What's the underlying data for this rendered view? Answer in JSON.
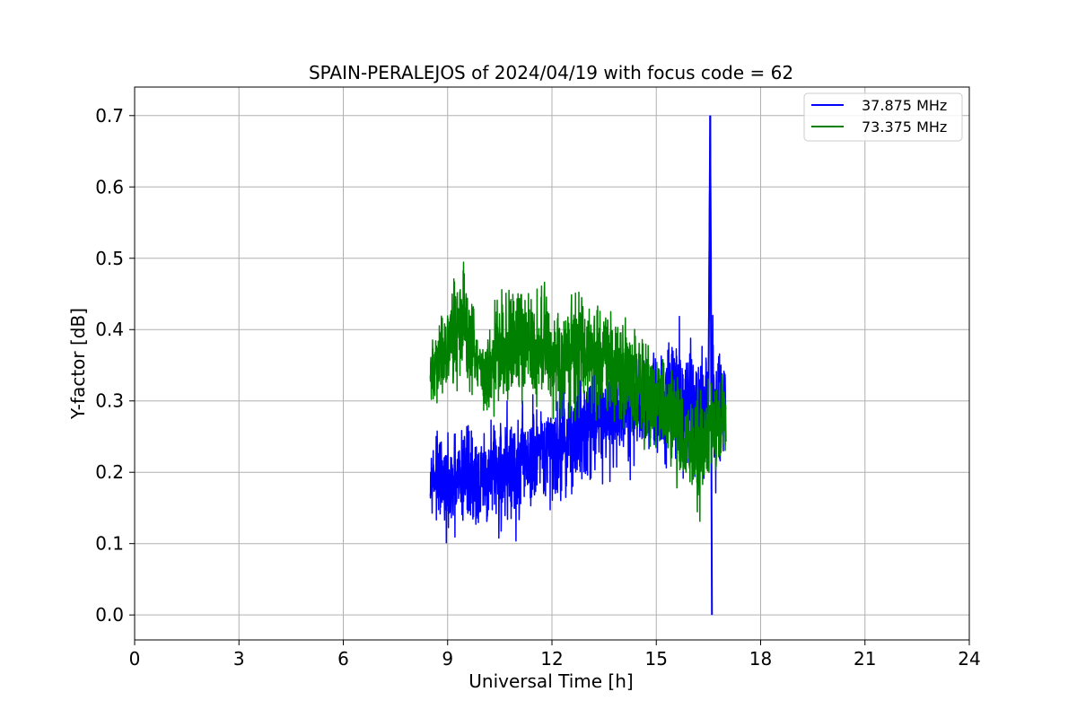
{
  "chart_data": {
    "type": "line",
    "title": "SPAIN-PERALEJOS of 2024/04/19 with focus code = 62",
    "xlabel": "Universal Time [h]",
    "ylabel": "Y-factor [dB]",
    "xlim": [
      0,
      24
    ],
    "ylim": [
      -0.035,
      0.74
    ],
    "xticks": [
      0,
      3,
      6,
      9,
      12,
      15,
      18,
      21,
      24
    ],
    "yticks": [
      0.0,
      0.1,
      0.2,
      0.3,
      0.4,
      0.5,
      0.6,
      0.7
    ],
    "xtick_labels": [
      "0",
      "3",
      "6",
      "9",
      "12",
      "15",
      "18",
      "21",
      "24"
    ],
    "ytick_labels": [
      "0.0",
      "0.1",
      "0.2",
      "0.3",
      "0.4",
      "0.5",
      "0.6",
      "0.7"
    ],
    "grid": true,
    "legend_position": "top-right",
    "series": [
      {
        "name": "37.875 MHz",
        "color": "#0000ff",
        "x": [
          8.5,
          8.75,
          9.0,
          9.25,
          9.5,
          9.75,
          10.0,
          10.25,
          10.5,
          10.75,
          11.0,
          11.25,
          11.5,
          11.75,
          12.0,
          12.25,
          12.5,
          12.75,
          13.0,
          13.25,
          13.5,
          13.75,
          14.0,
          14.25,
          14.5,
          14.75,
          15.0,
          15.25,
          15.5,
          15.75,
          16.0,
          16.25,
          16.5,
          16.55,
          16.6,
          16.75,
          17.0
        ],
        "y": [
          0.2,
          0.19,
          0.17,
          0.18,
          0.2,
          0.19,
          0.18,
          0.2,
          0.2,
          0.21,
          0.19,
          0.22,
          0.21,
          0.22,
          0.23,
          0.24,
          0.25,
          0.26,
          0.27,
          0.28,
          0.28,
          0.29,
          0.29,
          0.28,
          0.29,
          0.29,
          0.3,
          0.31,
          0.32,
          0.3,
          0.29,
          0.28,
          0.3,
          0.7,
          0.3,
          0.29,
          0.3
        ],
        "band": [
          0.05,
          0.08,
          0.09,
          0.1,
          0.12,
          0.1,
          0.09,
          0.1,
          0.12,
          0.12,
          0.11,
          0.12,
          0.12,
          0.1,
          0.1,
          0.11,
          0.11,
          0.11,
          0.11,
          0.11,
          0.11,
          0.11,
          0.11,
          0.1,
          0.1,
          0.1,
          0.12,
          0.13,
          0.14,
          0.13,
          0.12,
          0.12,
          0.14,
          0.0,
          0.14,
          0.13,
          0.12
        ]
      },
      {
        "name": "73.375 MHz",
        "color": "#008000",
        "x": [
          8.5,
          8.75,
          9.0,
          9.25,
          9.5,
          9.75,
          10.0,
          10.25,
          10.5,
          10.75,
          11.0,
          11.25,
          11.5,
          11.75,
          12.0,
          12.25,
          12.5,
          12.75,
          13.0,
          13.25,
          13.5,
          13.75,
          14.0,
          14.25,
          14.5,
          14.75,
          15.0,
          15.25,
          15.5,
          15.75,
          16.0,
          16.25,
          16.5,
          16.75,
          17.0
        ],
        "y": [
          0.33,
          0.36,
          0.38,
          0.4,
          0.41,
          0.37,
          0.33,
          0.35,
          0.37,
          0.38,
          0.39,
          0.38,
          0.37,
          0.38,
          0.36,
          0.35,
          0.37,
          0.38,
          0.37,
          0.36,
          0.36,
          0.35,
          0.34,
          0.34,
          0.33,
          0.31,
          0.3,
          0.29,
          0.27,
          0.25,
          0.24,
          0.22,
          0.25,
          0.28,
          0.27
        ],
        "band": [
          0.06,
          0.08,
          0.09,
          0.1,
          0.11,
          0.09,
          0.08,
          0.1,
          0.12,
          0.12,
          0.11,
          0.11,
          0.1,
          0.11,
          0.1,
          0.1,
          0.12,
          0.12,
          0.11,
          0.11,
          0.1,
          0.1,
          0.1,
          0.1,
          0.1,
          0.1,
          0.09,
          0.1,
          0.11,
          0.1,
          0.1,
          0.13,
          0.1,
          0.1,
          0.09
        ]
      }
    ]
  }
}
